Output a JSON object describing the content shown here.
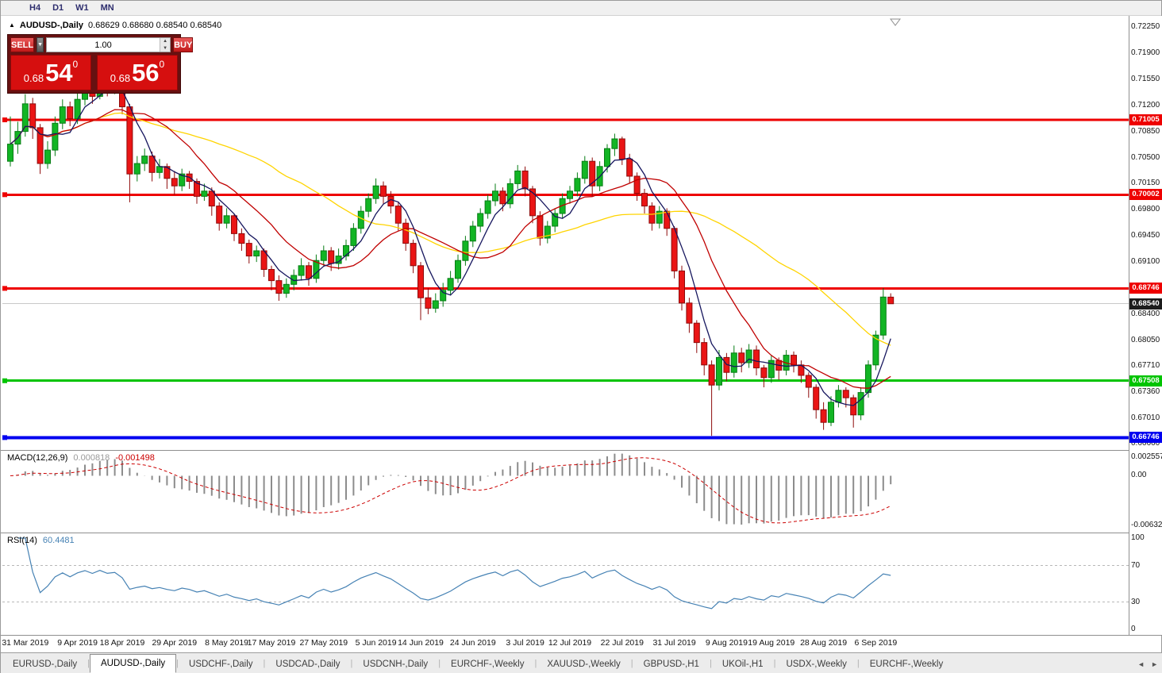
{
  "icons": {
    "collapse": "▲",
    "dropdown": "▼",
    "spin_up": "▲",
    "spin_down": "▼",
    "tab_prev": "◄",
    "tab_next": "►"
  },
  "topbar": {
    "timeframes": [
      "H4",
      "D1",
      "W1",
      "MN"
    ]
  },
  "chart": {
    "title": "AUDUSD-,Daily",
    "ohlc_text": "0.68629 0.68680 0.68540 0.68540"
  },
  "one_click": {
    "sell_label": "SELL",
    "buy_label": "BUY",
    "volume": "1.00",
    "sell_price": {
      "base": "0.68",
      "big": "54",
      "sup": "0"
    },
    "buy_price": {
      "base": "0.68",
      "big": "56",
      "sup": "0"
    }
  },
  "price_axis": {
    "top_value": 0.7225,
    "ticks": [
      "0.72250",
      "0.71900",
      "0.71550",
      "0.71200",
      "0.70850",
      "0.70500",
      "0.70150",
      "0.69800",
      "0.69450",
      "0.69100",
      "0.68750",
      "0.68400",
      "0.68050",
      "0.67710",
      "0.67360",
      "0.67010",
      "0.66660"
    ]
  },
  "hlines": [
    {
      "value": 0.71005,
      "label": "0.71005",
      "color": "#ee0000",
      "width": 3
    },
    {
      "value": 0.70002,
      "label": "0.70002",
      "color": "#ee0000",
      "width": 3
    },
    {
      "value": 0.68746,
      "label": "0.68746",
      "color": "#ee0000",
      "width": 3
    },
    {
      "value": 0.67508,
      "label": "0.67508",
      "color": "#00c400",
      "width": 3
    },
    {
      "value": 0.66746,
      "label": "0.66746",
      "color": "#0000f0",
      "width": 4
    }
  ],
  "bid_line": {
    "value": 0.6854,
    "label": "0.68540",
    "line_color": "#c9c9c9",
    "tag_bg": "#1c1c1c"
  },
  "chart_data": {
    "type": "candlestick",
    "title": "AUDUSD-,Daily",
    "ylabel": "price",
    "ylim": [
      0.6666,
      0.7225
    ],
    "grid": false,
    "colors": {
      "up_fill": "#12b524",
      "up_stroke": "#077d15",
      "down_fill": "#ea1515",
      "down_stroke": "#8e0b0b"
    },
    "moving_averages": [
      {
        "period": 34,
        "color": "#ffd400"
      },
      {
        "period": 13,
        "color": "#c00000"
      },
      {
        "period": 5,
        "color": "#16165e"
      }
    ],
    "date_labels": [
      {
        "text": "31 Mar 2019",
        "i": 2
      },
      {
        "text": "9 Apr 2019",
        "i": 9
      },
      {
        "text": "18 Apr 2019",
        "i": 15
      },
      {
        "text": "29 Apr 2019",
        "i": 22
      },
      {
        "text": "8 May 2019",
        "i": 29
      },
      {
        "text": "17 May 2019",
        "i": 35
      },
      {
        "text": "27 May 2019",
        "i": 42
      },
      {
        "text": "5 Jun 2019",
        "i": 49
      },
      {
        "text": "14 Jun 2019",
        "i": 55
      },
      {
        "text": "24 Jun 2019",
        "i": 62
      },
      {
        "text": "3 Jul 2019",
        "i": 69
      },
      {
        "text": "12 Jul 2019",
        "i": 75
      },
      {
        "text": "22 Jul 2019",
        "i": 82
      },
      {
        "text": "31 Jul 2019",
        "i": 89
      },
      {
        "text": "9 Aug 2019",
        "i": 96
      },
      {
        "text": "19 Aug 2019",
        "i": 102
      },
      {
        "text": "28 Aug 2019",
        "i": 109
      },
      {
        "text": "6 Sep 2019",
        "i": 116
      }
    ],
    "candles": [
      [
        0.7045,
        0.7105,
        0.7038,
        0.7068
      ],
      [
        0.7068,
        0.7098,
        0.7055,
        0.7085
      ],
      [
        0.7085,
        0.7135,
        0.7078,
        0.7122
      ],
      [
        0.7122,
        0.713,
        0.7075,
        0.709
      ],
      [
        0.709,
        0.7095,
        0.7028,
        0.7042
      ],
      [
        0.7042,
        0.7072,
        0.7035,
        0.706
      ],
      [
        0.706,
        0.7105,
        0.7052,
        0.7096
      ],
      [
        0.7096,
        0.7128,
        0.7088,
        0.7118
      ],
      [
        0.7118,
        0.7125,
        0.7092,
        0.7102
      ],
      [
        0.7102,
        0.7138,
        0.7095,
        0.7128
      ],
      [
        0.7128,
        0.7155,
        0.712,
        0.7145
      ],
      [
        0.7145,
        0.7152,
        0.7122,
        0.7132
      ],
      [
        0.7132,
        0.7172,
        0.7128,
        0.7158
      ],
      [
        0.7158,
        0.7165,
        0.7132,
        0.7142
      ],
      [
        0.7142,
        0.7158,
        0.7135,
        0.715
      ],
      [
        0.715,
        0.7155,
        0.7108,
        0.7118
      ],
      [
        0.7118,
        0.7122,
        0.699,
        0.7028
      ],
      [
        0.7028,
        0.7052,
        0.7018,
        0.7042
      ],
      [
        0.7042,
        0.7062,
        0.7032,
        0.7052
      ],
      [
        0.7052,
        0.7058,
        0.7018,
        0.703
      ],
      [
        0.703,
        0.7048,
        0.7022,
        0.7038
      ],
      [
        0.7038,
        0.7042,
        0.7008,
        0.7022
      ],
      [
        0.7022,
        0.7032,
        0.7,
        0.7012
      ],
      [
        0.7012,
        0.7035,
        0.7005,
        0.7028
      ],
      [
        0.7028,
        0.7032,
        0.7008,
        0.7018
      ],
      [
        0.7018,
        0.7022,
        0.6988,
        0.6998
      ],
      [
        0.6998,
        0.7015,
        0.6992,
        0.7005
      ],
      [
        0.7005,
        0.701,
        0.6972,
        0.6985
      ],
      [
        0.6985,
        0.699,
        0.6952,
        0.6962
      ],
      [
        0.6962,
        0.6982,
        0.6955,
        0.6972
      ],
      [
        0.6972,
        0.6975,
        0.6938,
        0.6948
      ],
      [
        0.6948,
        0.6955,
        0.6925,
        0.6935
      ],
      [
        0.6935,
        0.694,
        0.6908,
        0.6918
      ],
      [
        0.6918,
        0.6932,
        0.691,
        0.6925
      ],
      [
        0.6925,
        0.6928,
        0.689,
        0.69
      ],
      [
        0.69,
        0.6905,
        0.6872,
        0.6885
      ],
      [
        0.6885,
        0.6892,
        0.6858,
        0.6868
      ],
      [
        0.6868,
        0.6888,
        0.6862,
        0.688
      ],
      [
        0.688,
        0.69,
        0.6872,
        0.6892
      ],
      [
        0.6892,
        0.6915,
        0.6885,
        0.6905
      ],
      [
        0.6905,
        0.691,
        0.6878,
        0.6888
      ],
      [
        0.6888,
        0.692,
        0.6882,
        0.6912
      ],
      [
        0.6912,
        0.6932,
        0.6905,
        0.6925
      ],
      [
        0.6925,
        0.693,
        0.6898,
        0.6908
      ],
      [
        0.6908,
        0.6928,
        0.69,
        0.6918
      ],
      [
        0.6918,
        0.694,
        0.6912,
        0.6932
      ],
      [
        0.6932,
        0.6962,
        0.6925,
        0.6955
      ],
      [
        0.6955,
        0.6985,
        0.6948,
        0.6978
      ],
      [
        0.6978,
        0.7002,
        0.697,
        0.6995
      ],
      [
        0.6995,
        0.7022,
        0.6988,
        0.7012
      ],
      [
        0.7012,
        0.7018,
        0.6988,
        0.6998
      ],
      [
        0.6998,
        0.7005,
        0.6975,
        0.6985
      ],
      [
        0.6985,
        0.699,
        0.6952,
        0.6962
      ],
      [
        0.6962,
        0.6968,
        0.6925,
        0.6935
      ],
      [
        0.6935,
        0.694,
        0.6895,
        0.6905
      ],
      [
        0.6905,
        0.691,
        0.6832,
        0.6862
      ],
      [
        0.6862,
        0.6875,
        0.684,
        0.6848
      ],
      [
        0.6848,
        0.6868,
        0.6842,
        0.6858
      ],
      [
        0.6858,
        0.6882,
        0.685,
        0.6872
      ],
      [
        0.6872,
        0.6898,
        0.6865,
        0.6888
      ],
      [
        0.6888,
        0.692,
        0.6882,
        0.6912
      ],
      [
        0.6912,
        0.6945,
        0.6905,
        0.6938
      ],
      [
        0.6938,
        0.6965,
        0.693,
        0.6958
      ],
      [
        0.6958,
        0.6982,
        0.695,
        0.6975
      ],
      [
        0.6975,
        0.7,
        0.6968,
        0.6992
      ],
      [
        0.6992,
        0.7015,
        0.6985,
        0.7005
      ],
      [
        0.7005,
        0.701,
        0.6978,
        0.6988
      ],
      [
        0.6988,
        0.7022,
        0.6982,
        0.7015
      ],
      [
        0.7015,
        0.704,
        0.7008,
        0.7032
      ],
      [
        0.7032,
        0.7038,
        0.6998,
        0.7008
      ],
      [
        0.7008,
        0.7012,
        0.6962,
        0.6972
      ],
      [
        0.6972,
        0.6978,
        0.6932,
        0.6942
      ],
      [
        0.6942,
        0.6965,
        0.6935,
        0.6958
      ],
      [
        0.6958,
        0.6982,
        0.695,
        0.6975
      ],
      [
        0.6975,
        0.7002,
        0.6968,
        0.6995
      ],
      [
        0.6995,
        0.7012,
        0.6988,
        0.7005
      ],
      [
        0.7005,
        0.703,
        0.6998,
        0.7022
      ],
      [
        0.7022,
        0.7052,
        0.7015,
        0.7045
      ],
      [
        0.7045,
        0.705,
        0.6998,
        0.7012
      ],
      [
        0.7012,
        0.7045,
        0.7005,
        0.7038
      ],
      [
        0.7038,
        0.7068,
        0.703,
        0.7062
      ],
      [
        0.7062,
        0.7082,
        0.7052,
        0.7075
      ],
      [
        0.7075,
        0.7078,
        0.704,
        0.7048
      ],
      [
        0.7048,
        0.7055,
        0.7015,
        0.7025
      ],
      [
        0.7025,
        0.703,
        0.6992,
        0.7002
      ],
      [
        0.7002,
        0.7008,
        0.6975,
        0.6985
      ],
      [
        0.6985,
        0.699,
        0.6952,
        0.6962
      ],
      [
        0.6962,
        0.6985,
        0.6955,
        0.6978
      ],
      [
        0.6978,
        0.6982,
        0.6945,
        0.6955
      ],
      [
        0.6955,
        0.6958,
        0.6888,
        0.6898
      ],
      [
        0.6898,
        0.6905,
        0.6845,
        0.6855
      ],
      [
        0.6855,
        0.6862,
        0.6815,
        0.6828
      ],
      [
        0.6828,
        0.6832,
        0.6788,
        0.6802
      ],
      [
        0.6802,
        0.6808,
        0.6758,
        0.6772
      ],
      [
        0.6772,
        0.6778,
        0.6677,
        0.6745
      ],
      [
        0.6745,
        0.6792,
        0.6738,
        0.6782
      ],
      [
        0.6782,
        0.6788,
        0.675,
        0.6762
      ],
      [
        0.6762,
        0.6798,
        0.6755,
        0.6788
      ],
      [
        0.6788,
        0.6795,
        0.6762,
        0.6775
      ],
      [
        0.6775,
        0.68,
        0.6768,
        0.6792
      ],
      [
        0.6792,
        0.6798,
        0.6758,
        0.6768
      ],
      [
        0.6768,
        0.6772,
        0.6742,
        0.6755
      ],
      [
        0.6755,
        0.6785,
        0.6748,
        0.6778
      ],
      [
        0.6778,
        0.6782,
        0.6752,
        0.6765
      ],
      [
        0.6765,
        0.6792,
        0.6758,
        0.6785
      ],
      [
        0.6785,
        0.679,
        0.6762,
        0.6772
      ],
      [
        0.6772,
        0.6778,
        0.6748,
        0.6758
      ],
      [
        0.6758,
        0.6762,
        0.6728,
        0.6742
      ],
      [
        0.6742,
        0.6746,
        0.67,
        0.6712
      ],
      [
        0.6712,
        0.6722,
        0.6685,
        0.6695
      ],
      [
        0.6695,
        0.673,
        0.669,
        0.6722
      ],
      [
        0.6722,
        0.6745,
        0.6715,
        0.6738
      ],
      [
        0.6738,
        0.6742,
        0.6715,
        0.6728
      ],
      [
        0.6728,
        0.6732,
        0.6688,
        0.6705
      ],
      [
        0.6705,
        0.6742,
        0.6698,
        0.6735
      ],
      [
        0.6735,
        0.6778,
        0.6728,
        0.6772
      ],
      [
        0.6772,
        0.6818,
        0.6765,
        0.6812
      ],
      [
        0.6812,
        0.6875,
        0.6806,
        0.6863
      ],
      [
        0.68629,
        0.6868,
        0.6854,
        0.6854
      ]
    ]
  },
  "macd": {
    "label": "MACD(12,26,9)",
    "value1": "0.000818",
    "value2": "-0.001498",
    "axis": [
      "0.0025574",
      "0.00",
      "-0.0063268"
    ],
    "scale_max": 0.0025574,
    "scale_min": -0.0063268,
    "histogram_color": "#8c8c8c",
    "signal_color": "#cc0000"
  },
  "rsi": {
    "label": "RSI(14)",
    "value": "60.4481",
    "axis": [
      "100",
      "70",
      "30",
      "0"
    ],
    "levels": [
      70,
      30
    ],
    "line_color": "#4682b4",
    "level_color": "#b8b8b8"
  },
  "tabs": {
    "active_index": 1,
    "items": [
      "EURUSD-,Daily",
      "AUDUSD-,Daily",
      "USDCHF-,Daily",
      "USDCAD-,Daily",
      "USDCNH-,Daily",
      "EURCHF-,Weekly",
      "XAUUSD-,Weekly",
      "GBPUSD-,H1",
      "UKOil-,H1",
      "USDX-,Weekly",
      "EURCHF-,Weekly"
    ]
  }
}
